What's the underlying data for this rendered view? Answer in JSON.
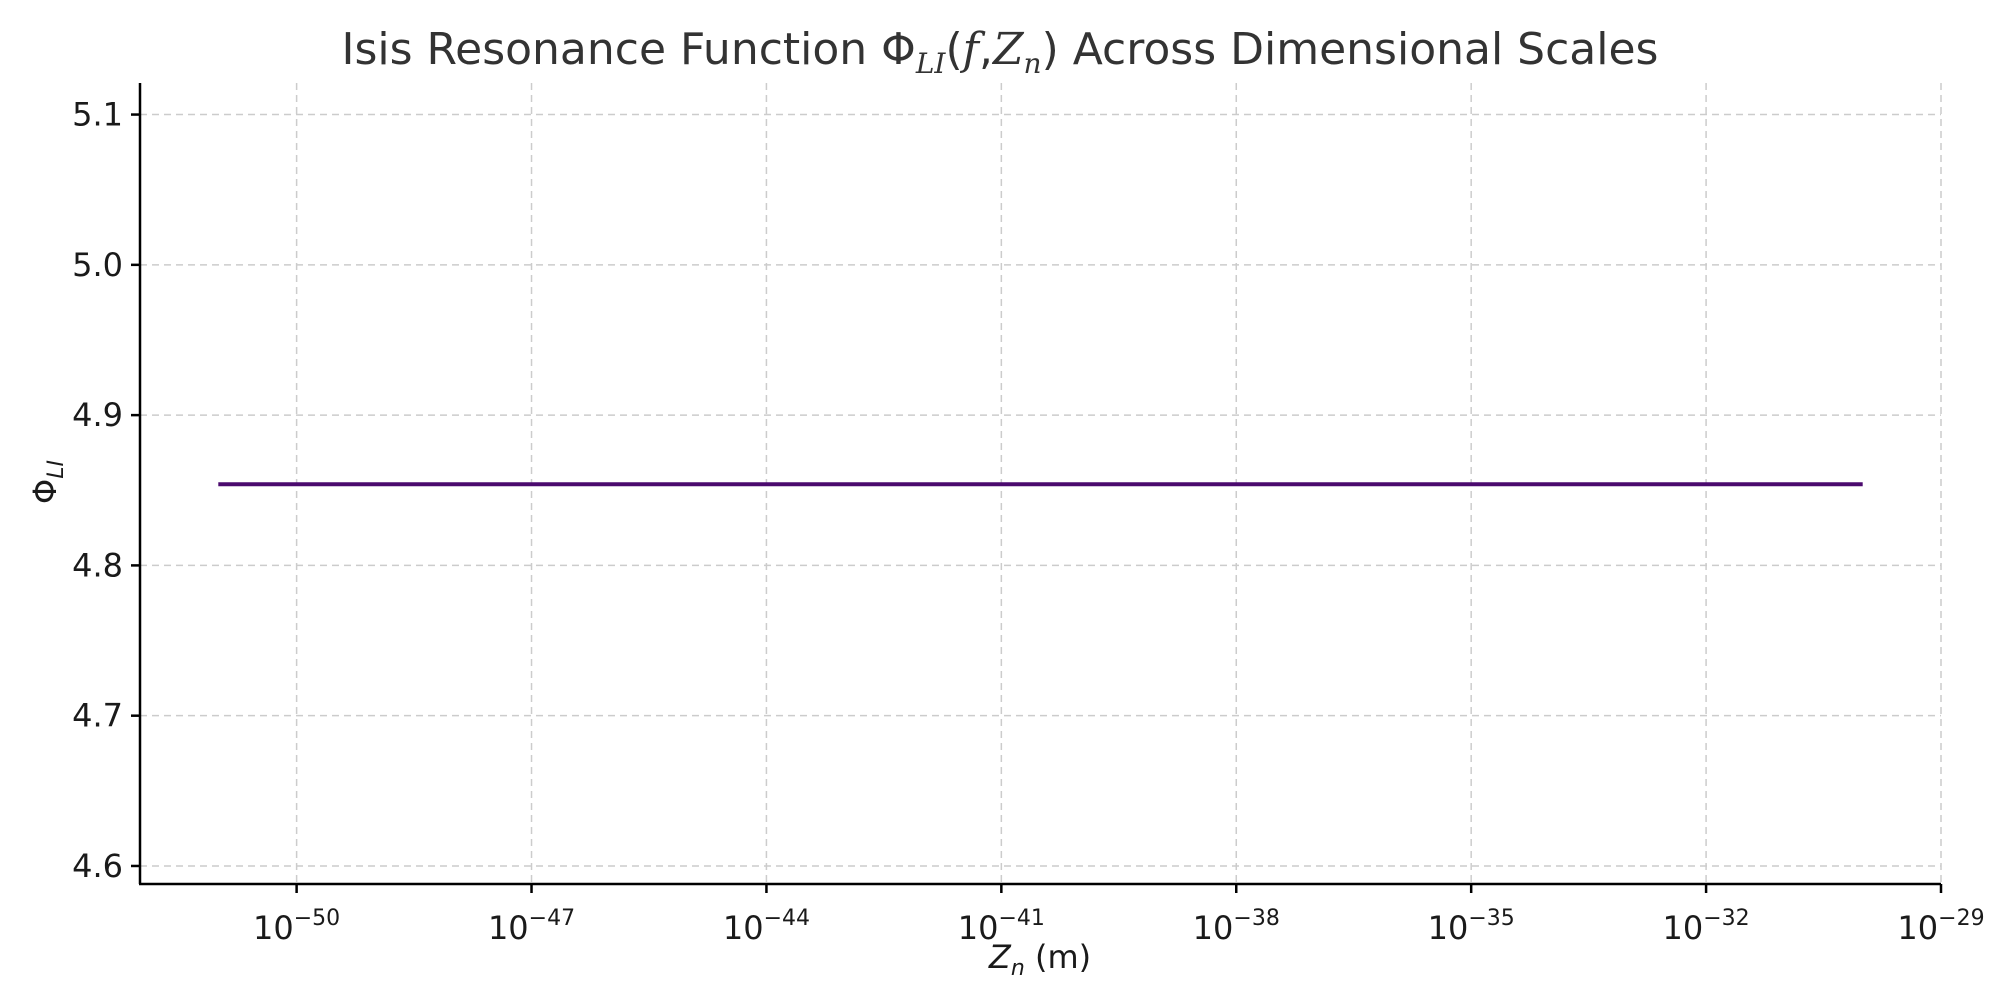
{
  "chart_data": {
    "type": "line",
    "title": {
      "prefix": "Isis Resonance Function Φ",
      "sub": "LI",
      "open": "(",
      "arg1": "f",
      "comma": ",",
      "arg2": "Z",
      "arg2_sub": "n",
      "close": ")",
      "suffix": " Across Dimensional Scales"
    },
    "xlabel": {
      "var": "Z",
      "sub": "n",
      "unit": " (m)"
    },
    "ylabel": {
      "var": "Φ",
      "sub": "LI"
    },
    "x_scale": "log",
    "x_ticks": [
      {
        "base": "10",
        "exp": "−50",
        "value": 1e-50
      },
      {
        "base": "10",
        "exp": "−47",
        "value": 1e-47
      },
      {
        "base": "10",
        "exp": "−44",
        "value": 1e-44
      },
      {
        "base": "10",
        "exp": "−41",
        "value": 1e-41
      },
      {
        "base": "10",
        "exp": "−38",
        "value": 1e-38
      },
      {
        "base": "10",
        "exp": "−35",
        "value": 1e-35
      },
      {
        "base": "10",
        "exp": "−32",
        "value": 1e-32
      },
      {
        "base": "10",
        "exp": "−29",
        "value": 1e-29
      }
    ],
    "y_ticks": [
      "4.6",
      "4.7",
      "4.8",
      "4.9",
      "5.0",
      "5.1"
    ],
    "xlim": [
      1e-52,
      1e-29
    ],
    "ylim": [
      4.588,
      5.121
    ],
    "grid": true,
    "series": [
      {
        "color": "#4b0a6e",
        "x": [
          1e-51,
          1e-30
        ],
        "y": [
          4.854,
          4.854
        ]
      }
    ]
  }
}
